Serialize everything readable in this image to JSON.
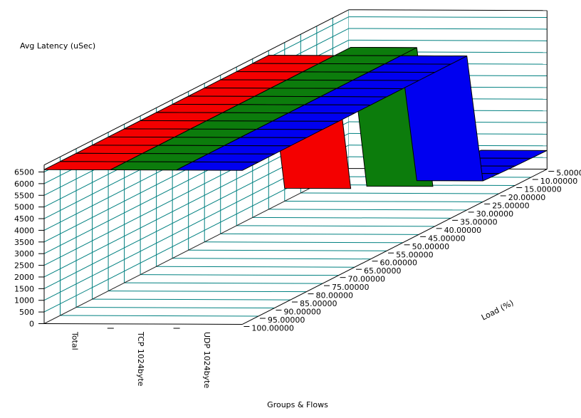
{
  "page": {
    "background": "#FFFFFF"
  },
  "chart_data": {
    "type": "surface3d-ribbon",
    "title": "",
    "z_axis": {
      "title": "Avg Latency (uSec)",
      "min": 0,
      "max": 6500,
      "tick_step": 500,
      "wall_top": 6800
    },
    "load_axis": {
      "title": "Load (%)",
      "label_decimals": 5,
      "values_front_to_back": [
        100,
        95,
        90,
        85,
        80,
        75,
        70,
        65,
        60,
        55,
        50,
        45,
        40,
        35,
        30,
        25,
        20,
        15,
        10,
        5
      ]
    },
    "group_axis": {
      "title": "Groups & Flows",
      "categories": [
        "Total",
        "TCP 1024byte",
        "UDP 1024byte"
      ]
    },
    "series": [
      {
        "name": "Total",
        "color": "#F40000",
        "values": [
          6600,
          6600,
          6600,
          6600,
          6600,
          6600,
          6600,
          6600,
          6600,
          6600,
          6600,
          6600,
          6600,
          6600,
          6600,
          550,
          0,
          0,
          0,
          0
        ]
      },
      {
        "name": "TCP 1024byte",
        "color": "#0C7C0C",
        "values": [
          6600,
          6600,
          6600,
          6600,
          6600,
          6600,
          6600,
          6600,
          6600,
          6600,
          6600,
          6600,
          6600,
          6600,
          6600,
          6600,
          300,
          0,
          0,
          0
        ]
      },
      {
        "name": "UDP 1024byte",
        "color": "#0000F0",
        "values": [
          6600,
          6600,
          6600,
          6600,
          6600,
          6600,
          6600,
          6600,
          6600,
          6600,
          6600,
          6600,
          6600,
          6600,
          6600,
          900,
          860,
          830,
          815,
          800
        ]
      }
    ],
    "grid_color": "#008080",
    "edge_color": "#000000",
    "ylim": [
      0,
      6500
    ],
    "legend_position": "none",
    "grid": true
  }
}
